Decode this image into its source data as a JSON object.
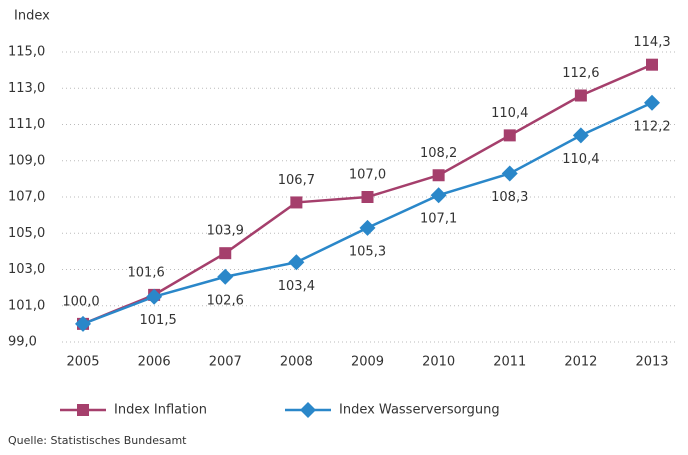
{
  "chart_data": {
    "type": "line",
    "y_axis_label": "Index",
    "categories": [
      "2005",
      "2006",
      "2007",
      "2008",
      "2009",
      "2010",
      "2011",
      "2012",
      "2013"
    ],
    "series": [
      {
        "name": "Index Inflation",
        "color": "#a53f6c",
        "marker": "square",
        "values": [
          100.0,
          101.6,
          103.9,
          106.7,
          107.0,
          108.2,
          110.4,
          112.6,
          114.3
        ],
        "value_labels": [
          "100,0",
          "101,6",
          "103,9",
          "106,7",
          "107,0",
          "108,2",
          "110,4",
          "112,6",
          "114,3"
        ]
      },
      {
        "name": "Index Wasserversorgung",
        "color": "#2a87c9",
        "marker": "diamond",
        "values": [
          100.0,
          101.5,
          102.6,
          103.4,
          105.3,
          107.1,
          108.3,
          110.4,
          112.2
        ],
        "value_labels": [
          null,
          "101,5",
          "102,6",
          "103,4",
          "105,3",
          "107,1",
          "108,3",
          "110,4",
          "112,2"
        ]
      }
    ],
    "ylim": [
      99,
      115
    ],
    "yticks": [
      {
        "value": 99,
        "label": "99,0"
      },
      {
        "value": 101,
        "label": "101,0"
      },
      {
        "value": 103,
        "label": "103,0"
      },
      {
        "value": 105,
        "label": "105,0"
      },
      {
        "value": 107,
        "label": "107,0"
      },
      {
        "value": 109,
        "label": "109,0"
      },
      {
        "value": 111,
        "label": "111,0"
      },
      {
        "value": 113,
        "label": "113,0"
      },
      {
        "value": 115,
        "label": "115,0"
      }
    ],
    "grid": true,
    "legend": "bottom",
    "source": "Quelle: Statistisches Bundesamt"
  }
}
